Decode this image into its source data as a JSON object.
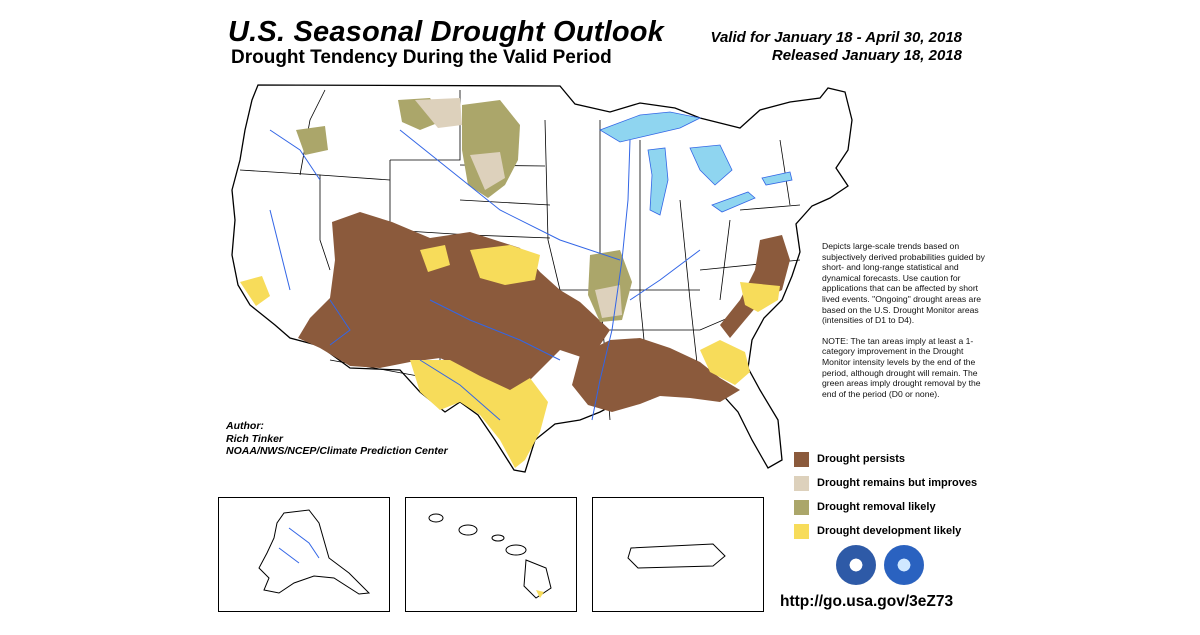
{
  "header": {
    "title": "U.S. Seasonal Drought Outlook",
    "subtitle": "Drought Tendency During the Valid Period",
    "valid_for": "Valid for January 18 - April 30, 2018",
    "released": "Released January 18, 2018"
  },
  "description": {
    "paragraph1": "Depicts large-scale trends based on subjectively derived probabilities guided by short- and long-range statistical and dynamical forecasts. Use caution for applications that can be affected by short lived events. \"Ongoing\" drought areas are based on the U.S. Drought Monitor areas (intensities of D1 to D4).",
    "paragraph2": "NOTE: The tan areas imply at least a 1-category improvement in the Drought Monitor intensity levels by the end of the period, although drought will remain. The green areas imply drought removal by the end of the period (D0 or none)."
  },
  "author": {
    "label": "Author:",
    "name": "Rich Tinker",
    "org": "NOAA/NWS/NCEP/Climate Prediction Center"
  },
  "legend": [
    {
      "label": "Drought persists",
      "color": "#8B5A3C"
    },
    {
      "label": "Drought remains but improves",
      "color": "#DDD1BC"
    },
    {
      "label": "Drought removal likely",
      "color": "#ABA66A"
    },
    {
      "label": "Drought development likely",
      "color": "#F7DC5A"
    }
  ],
  "colors": {
    "persists": "#8B5A3C",
    "improves": "#DDD1BC",
    "removal": "#ABA66A",
    "development": "#F7DC5A",
    "water": "#8FD5F0",
    "river": "#3366E6"
  },
  "url": "http://go.usa.gov/3eZ73",
  "insets": [
    "Alaska",
    "Hawaii",
    "Puerto Rico"
  ],
  "seals": [
    "noaa-icon",
    "dept-of-commerce-icon"
  ]
}
